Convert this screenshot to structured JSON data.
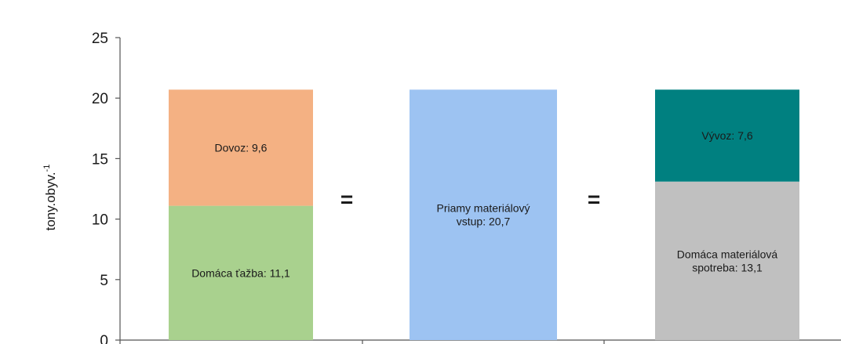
{
  "chart_data": {
    "type": "bar",
    "stacked": true,
    "ylabel": "tony.obyv.",
    "ylabel_superscript": "-1",
    "ylim": [
      0,
      25
    ],
    "yticks": [
      "0",
      "5",
      "10",
      "15",
      "20",
      "25"
    ],
    "grid": false,
    "bars": [
      {
        "segments": [
          {
            "label_lines": [
              "Domáca ťažba: 11,1"
            ],
            "value": 11.1,
            "color": "#a9d18e"
          },
          {
            "label_lines": [
              "Dovoz: 9,6"
            ],
            "value": 9.6,
            "color": "#f4b183"
          }
        ]
      },
      {
        "segments": [
          {
            "label_lines": [
              "Priamy materiálový",
              "vstup: 20,7"
            ],
            "value": 20.7,
            "color": "#9dc3f2"
          }
        ]
      },
      {
        "segments": [
          {
            "label_lines": [
              "Domáca materiálová",
              "spotreba: 13,1"
            ],
            "value": 13.1,
            "color": "#c0c0c0"
          },
          {
            "label_lines": [
              "Vývoz: 7,6"
            ],
            "value": 7.6,
            "color": "#008080"
          }
        ]
      }
    ],
    "operators": [
      "=",
      "="
    ]
  }
}
